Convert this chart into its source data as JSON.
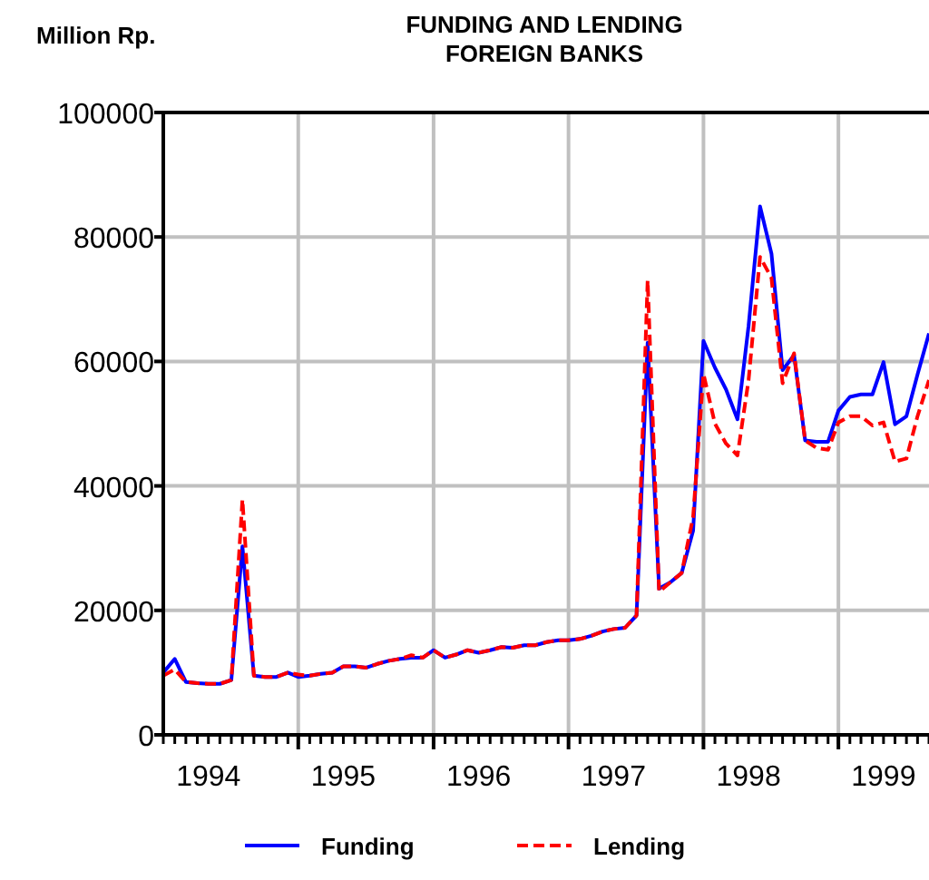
{
  "chart_data": {
    "type": "line",
    "title": "FUNDING AND LENDING\nFOREIGN BANKS",
    "ylabel": "Million Rp.",
    "x": [
      "1994-03",
      "1994-04",
      "1994-05",
      "1994-06",
      "1994-07",
      "1994-08",
      "1994-09",
      "1994-10",
      "1994-11",
      "1994-12",
      "1995-01",
      "1995-02",
      "1995-03",
      "1995-04",
      "1995-05",
      "1995-06",
      "1995-07",
      "1995-08",
      "1995-09",
      "1995-10",
      "1995-11",
      "1995-12",
      "1996-01",
      "1996-02",
      "1996-03",
      "1996-04",
      "1996-05",
      "1996-06",
      "1996-07",
      "1996-08",
      "1996-09",
      "1996-10",
      "1996-11",
      "1996-12",
      "1997-01",
      "1997-02",
      "1997-03",
      "1997-04",
      "1997-05",
      "1997-06",
      "1997-07",
      "1997-08",
      "1997-09",
      "1997-10",
      "1997-11",
      "1997-12",
      "1998-01",
      "1998-02",
      "1998-03",
      "1998-04",
      "1998-05",
      "1998-06",
      "1998-07",
      "1998-08",
      "1998-09",
      "1998-10",
      "1998-11",
      "1998-12",
      "1999-01",
      "1999-02",
      "1999-03",
      "1999-04",
      "1999-05",
      "1999-06",
      "1999-07",
      "1999-08",
      "1999-09",
      "1999-10",
      "1999-11"
    ],
    "series": [
      {
        "name": "Funding",
        "color": "#0000ff",
        "line_style": "solid",
        "values": [
          10000,
          12200,
          8500,
          8300,
          8200,
          8200,
          8800,
          30300,
          9500,
          9300,
          9300,
          10000,
          9300,
          9500,
          9800,
          10000,
          11000,
          11000,
          10800,
          11400,
          11900,
          12200,
          12400,
          12400,
          13600,
          12400,
          12900,
          13600,
          13200,
          13600,
          14100,
          14000,
          14400,
          14400,
          14900,
          15200,
          15200,
          15400,
          15900,
          16600,
          17000,
          17200,
          19200,
          63000,
          23500,
          24500,
          26000,
          32800,
          63300,
          59000,
          55500,
          50700,
          65700,
          84900,
          77300,
          58600,
          61000,
          47300,
          47100,
          47100,
          52100,
          54300,
          54700,
          54700,
          59900,
          49900,
          51200,
          57900,
          64500
        ]
      },
      {
        "name": "Lending",
        "color": "#ff0000",
        "line_style": "dashed",
        "values": [
          9500,
          10500,
          8500,
          8300,
          8200,
          8200,
          8800,
          37800,
          9500,
          9300,
          9300,
          10000,
          9700,
          9500,
          9800,
          10000,
          11000,
          11000,
          10800,
          11400,
          11900,
          12200,
          12800,
          12400,
          13600,
          12400,
          12900,
          13600,
          13200,
          13600,
          14100,
          14000,
          14400,
          14400,
          14900,
          15200,
          15200,
          15400,
          15900,
          16600,
          17000,
          17200,
          19200,
          73000,
          23000,
          24500,
          26000,
          35000,
          58000,
          50000,
          46800,
          44900,
          57000,
          76800,
          73400,
          56500,
          61300,
          47300,
          46100,
          45800,
          50200,
          51200,
          51200,
          49700,
          50200,
          43900,
          44400,
          51200,
          57000
        ]
      }
    ],
    "xlim": [
      "1994-03",
      "1999-11"
    ],
    "xticks": [
      {
        "value": "1994-07",
        "label": "1994"
      },
      {
        "value": "1995-07",
        "label": "1995"
      },
      {
        "value": "1996-07",
        "label": "1996"
      },
      {
        "value": "1997-07",
        "label": "1997"
      },
      {
        "value": "1998-07",
        "label": "1998"
      },
      {
        "value": "1999-07",
        "label": "1999"
      },
      {
        "value": "1995-03",
        "label": null
      },
      {
        "value": "1996-03",
        "label": null
      },
      {
        "value": "1997-03",
        "label": null
      },
      {
        "value": "1998-03",
        "label": null
      },
      {
        "value": "1999-03",
        "label": null
      }
    ],
    "ylim": [
      0,
      100000
    ],
    "yticks": [
      0,
      20000,
      40000,
      60000,
      80000,
      100000
    ],
    "grid": true,
    "legend": "bottom"
  }
}
